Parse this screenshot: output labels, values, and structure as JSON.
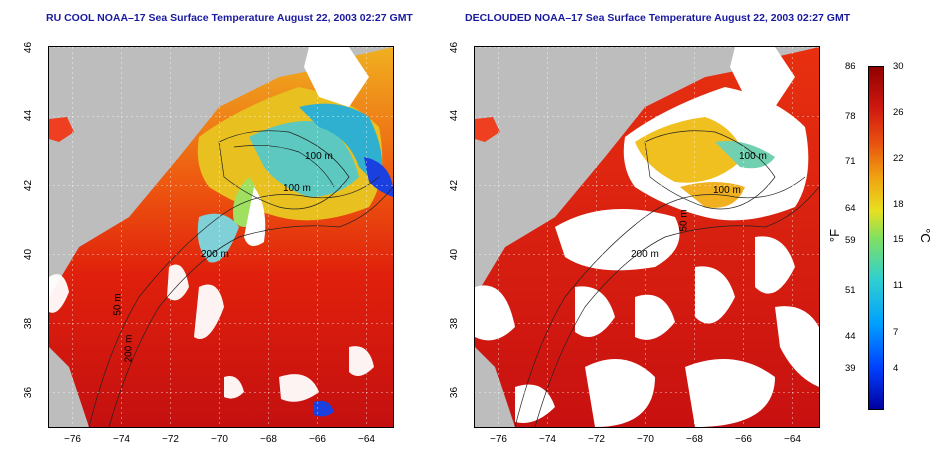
{
  "left_panel": {
    "title": "RU COOL NOAA–17 Sea Surface Temperature August 22, 2003 02:27 GMT",
    "contour_labels": [
      "100 m",
      "100 m",
      "200 m",
      "50 m",
      "200 m"
    ]
  },
  "right_panel": {
    "title": "DECLOUDED NOAA–17 Sea Surface Temperature August 22, 2003 02:27 GMT",
    "contour_labels": [
      "100 m",
      "100 m",
      "50 m",
      "200 m"
    ]
  },
  "axes": {
    "x_ticks": [
      "−76",
      "−74",
      "−72",
      "−70",
      "−68",
      "−66",
      "−64"
    ],
    "y_ticks": [
      "46",
      "44",
      "42",
      "40",
      "38",
      "36"
    ],
    "lon_range": [
      -77,
      -63
    ],
    "lat_range": [
      35,
      46
    ]
  },
  "colorbar": {
    "fahrenheit_ticks": [
      "86",
      "78",
      "71",
      "64",
      "59",
      "51",
      "44",
      "39"
    ],
    "celsius_ticks": [
      "30",
      "26",
      "22",
      "18",
      "15",
      "11",
      "7",
      "4"
    ],
    "fahrenheit_unit": "°F",
    "celsius_unit": "°C",
    "range_c": [
      0,
      30
    ]
  },
  "colors": {
    "land": "#bdbdbd",
    "warm": "#dd1d0c",
    "cloud": "#ffffff",
    "title": "#1a1aa0"
  }
}
